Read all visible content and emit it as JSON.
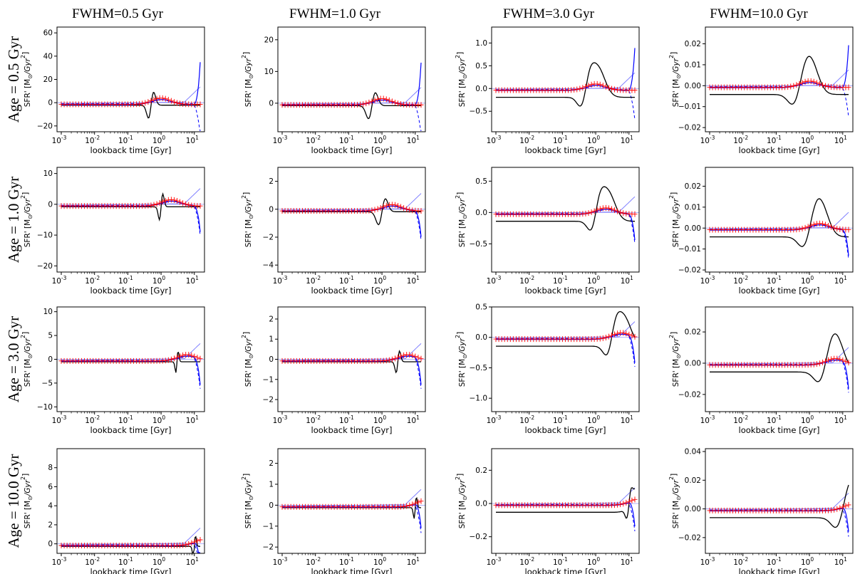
{
  "figure": {
    "column_titles": [
      "FWHM=0.5 Gyr",
      "FWHM=1.0 Gyr",
      "FWHM=3.0 Gyr",
      "FWHM=10.0 Gyr"
    ],
    "row_titles": [
      "Age = 0.5 Gyr",
      "Age = 1.0 Gyr",
      "Age = 3.0 Gyr",
      "Age = 10.0 Gyr"
    ],
    "ylabel_prefix": "SFR' [M",
    "ylabel_sub": "⊙",
    "ylabel_suffix": "/Gyr",
    "ylabel_sup": "2",
    "ylabel_close": "]",
    "xlabel": "lookback time [Gyr]",
    "x_tick_labels": [
      "10",
      "10",
      "10",
      "10",
      "10"
    ],
    "x_tick_exponents": [
      "-3",
      "-2",
      "-1",
      "0",
      "1"
    ]
  },
  "colors": {
    "truth": "#000000",
    "fit_solid": "#0000ff",
    "fit_light": "#8080ff",
    "markers": "#ff0000",
    "marker_band": "#ff9999"
  },
  "chart_data": [
    {
      "type": "line",
      "row": 0,
      "col": 0,
      "ylim": [
        -25,
        65
      ],
      "yticks": [
        -20,
        0,
        20,
        40,
        60
      ],
      "ytick_labels": [
        "−20",
        "0",
        "20",
        "40",
        "60"
      ],
      "xscale": "log",
      "xlim": [
        0.001,
        15
      ],
      "age": 0.5,
      "fwhm": 0.5,
      "model": "sfr"
    },
    {
      "type": "line",
      "row": 0,
      "col": 1,
      "ylim": [
        -9,
        24
      ],
      "yticks": [
        0,
        10,
        20
      ],
      "ytick_labels": [
        "0",
        "10",
        "20"
      ],
      "xscale": "log",
      "xlim": [
        0.001,
        15
      ],
      "age": 0.5,
      "fwhm": 1.0,
      "model": "sfr"
    },
    {
      "type": "line",
      "row": 0,
      "col": 2,
      "ylim": [
        -0.95,
        1.35
      ],
      "yticks": [
        -0.5,
        0,
        0.5,
        1.0
      ],
      "ytick_labels": [
        "−0.5",
        "0.0",
        "0.5",
        "1.0"
      ],
      "xscale": "log",
      "xlim": [
        0.001,
        15
      ],
      "age": 0.5,
      "fwhm": 3.0,
      "model": "sfr"
    },
    {
      "type": "line",
      "row": 0,
      "col": 3,
      "ylim": [
        -0.022,
        0.028
      ],
      "yticks": [
        -0.02,
        -0.01,
        0,
        0.01,
        0.02
      ],
      "ytick_labels": [
        "−0.02",
        "−0.01",
        "0.00",
        "0.01",
        "0.02"
      ],
      "xscale": "log",
      "xlim": [
        0.001,
        15
      ],
      "age": 0.5,
      "fwhm": 10.0,
      "model": "sfr"
    },
    {
      "type": "line",
      "row": 1,
      "col": 0,
      "ylim": [
        -22,
        12
      ],
      "yticks": [
        -20,
        -10,
        0,
        10
      ],
      "ytick_labels": [
        "−20",
        "−10",
        "0",
        "10"
      ],
      "xscale": "log",
      "xlim": [
        0.001,
        15
      ],
      "age": 1.0,
      "fwhm": 0.5,
      "model": "sfr"
    },
    {
      "type": "line",
      "row": 1,
      "col": 1,
      "ylim": [
        -4.5,
        3.0
      ],
      "yticks": [
        -4,
        -2,
        0,
        2
      ],
      "ytick_labels": [
        "−4",
        "−2",
        "0",
        "2"
      ],
      "xscale": "log",
      "xlim": [
        0.001,
        15
      ],
      "age": 1.0,
      "fwhm": 1.0,
      "model": "sfr"
    },
    {
      "type": "line",
      "row": 1,
      "col": 2,
      "ylim": [
        -0.95,
        0.72
      ],
      "yticks": [
        -0.5,
        0,
        0.5
      ],
      "ytick_labels": [
        "−0.5",
        "0.0",
        "0.5"
      ],
      "xscale": "log",
      "xlim": [
        0.001,
        15
      ],
      "age": 1.0,
      "fwhm": 3.0,
      "model": "sfr"
    },
    {
      "type": "line",
      "row": 1,
      "col": 3,
      "ylim": [
        -0.021,
        0.029
      ],
      "yticks": [
        -0.02,
        -0.01,
        0,
        0.01,
        0.02
      ],
      "ytick_labels": [
        "−0.02",
        "−0.01",
        "0.00",
        "0.01",
        "0.02"
      ],
      "xscale": "log",
      "xlim": [
        0.001,
        15
      ],
      "age": 1.0,
      "fwhm": 10.0,
      "model": "sfr"
    },
    {
      "type": "line",
      "row": 2,
      "col": 0,
      "ylim": [
        -11,
        11
      ],
      "yticks": [
        -10,
        -5,
        0,
        5,
        10
      ],
      "ytick_labels": [
        "−10",
        "−5",
        "0",
        "5",
        "10"
      ],
      "xscale": "log",
      "xlim": [
        0.001,
        15
      ],
      "age": 3.0,
      "fwhm": 0.5,
      "model": "sfr"
    },
    {
      "type": "line",
      "row": 2,
      "col": 1,
      "ylim": [
        -2.6,
        2.6
      ],
      "yticks": [
        -2,
        -1,
        0,
        1,
        2
      ],
      "ytick_labels": [
        "−2",
        "−1",
        "0",
        "1",
        "2"
      ],
      "xscale": "log",
      "xlim": [
        0.001,
        15
      ],
      "age": 3.0,
      "fwhm": 1.0,
      "model": "sfr"
    },
    {
      "type": "line",
      "row": 2,
      "col": 2,
      "ylim": [
        -1.22,
        0.5
      ],
      "yticks": [
        -1.0,
        -0.5,
        0,
        0.5
      ],
      "ytick_labels": [
        "−1.0",
        "−0.5",
        "0.0",
        "0.5"
      ],
      "xscale": "log",
      "xlim": [
        0.001,
        15
      ],
      "age": 3.0,
      "fwhm": 3.0,
      "model": "sfr"
    },
    {
      "type": "line",
      "row": 2,
      "col": 3,
      "ylim": [
        -0.031,
        0.036
      ],
      "yticks": [
        -0.02,
        0,
        0.02
      ],
      "ytick_labels": [
        "−0.02",
        "0.00",
        "0.02"
      ],
      "xscale": "log",
      "xlim": [
        0.001,
        15
      ],
      "age": 3.0,
      "fwhm": 10.0,
      "model": "sfr"
    },
    {
      "type": "line",
      "row": 3,
      "col": 0,
      "ylim": [
        -1,
        10
      ],
      "yticks": [
        0,
        2,
        4,
        6,
        8
      ],
      "ytick_labels": [
        "0",
        "2",
        "4",
        "6",
        "8"
      ],
      "xscale": "log",
      "xlim": [
        0.001,
        15
      ],
      "age": 10.0,
      "fwhm": 0.5,
      "model": "sfr"
    },
    {
      "type": "line",
      "row": 3,
      "col": 1,
      "ylim": [
        -2.3,
        2.7
      ],
      "yticks": [
        -2,
        -1,
        0,
        1,
        2
      ],
      "ytick_labels": [
        "−2",
        "−1",
        "0",
        "1",
        "2"
      ],
      "xscale": "log",
      "xlim": [
        0.001,
        15
      ],
      "age": 10.0,
      "fwhm": 1.0,
      "model": "sfr"
    },
    {
      "type": "line",
      "row": 3,
      "col": 2,
      "ylim": [
        -0.3,
        0.33
      ],
      "yticks": [
        -0.2,
        0,
        0.2
      ],
      "ytick_labels": [
        "−0.2",
        "0.0",
        "0.2"
      ],
      "xscale": "log",
      "xlim": [
        0.001,
        15
      ],
      "age": 10.0,
      "fwhm": 3.0,
      "model": "sfr"
    },
    {
      "type": "line",
      "row": 3,
      "col": 3,
      "ylim": [
        -0.031,
        0.042
      ],
      "yticks": [
        -0.02,
        0,
        0.02,
        0.04
      ],
      "ytick_labels": [
        "−0.02",
        "0.00",
        "0.02",
        "0.04"
      ],
      "xscale": "log",
      "xlim": [
        0.001,
        15
      ],
      "age": 10.0,
      "fwhm": 10.0,
      "model": "sfr"
    }
  ]
}
